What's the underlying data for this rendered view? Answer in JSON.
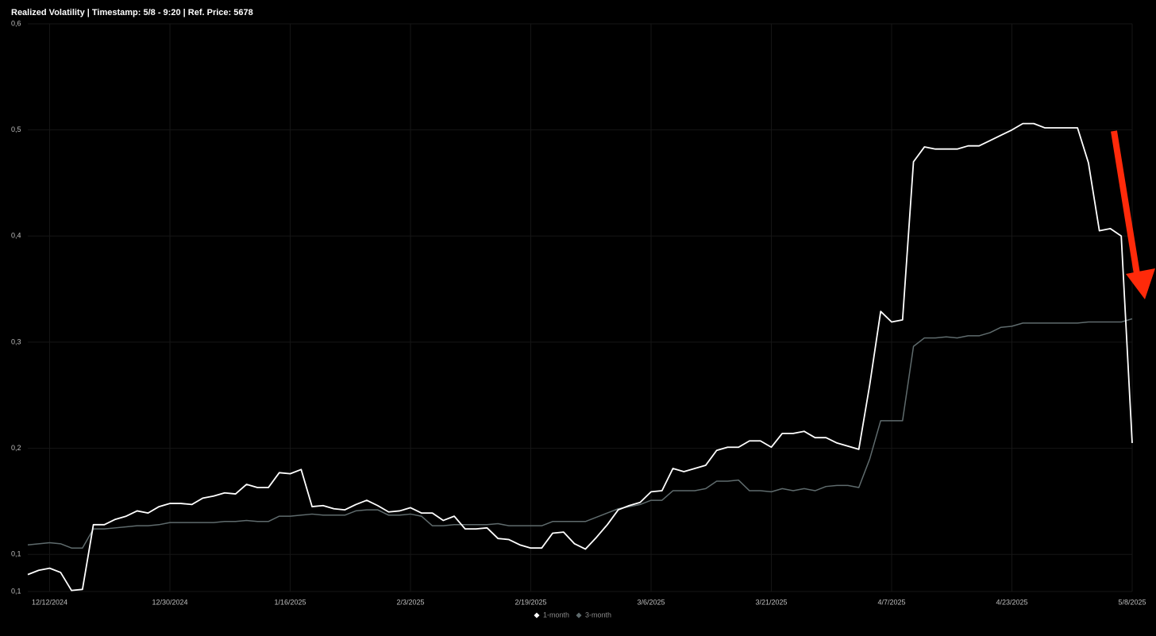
{
  "chart_data": {
    "type": "line",
    "title": "Realized Volatility | Timestamp: 5/8 - 9:20  | Ref. Price: 5678",
    "categories": [
      null,
      null,
      "12/12/2024",
      null,
      null,
      null,
      null,
      null,
      null,
      null,
      null,
      null,
      null,
      "12/30/2024",
      null,
      null,
      null,
      null,
      null,
      null,
      null,
      null,
      null,
      null,
      "1/16/2025",
      null,
      null,
      null,
      null,
      null,
      null,
      null,
      null,
      null,
      null,
      "2/3/2025",
      null,
      null,
      null,
      null,
      null,
      null,
      null,
      null,
      null,
      null,
      "2/19/2025",
      null,
      null,
      null,
      null,
      null,
      null,
      null,
      null,
      null,
      null,
      "3/6/2025",
      null,
      null,
      null,
      null,
      null,
      null,
      null,
      null,
      null,
      null,
      "3/21/2025",
      null,
      null,
      null,
      null,
      null,
      null,
      null,
      null,
      null,
      null,
      "4/7/2025",
      null,
      null,
      null,
      null,
      null,
      null,
      null,
      null,
      null,
      null,
      "4/23/2025",
      null,
      null,
      null,
      null,
      null,
      null,
      null,
      null,
      null,
      null,
      "5/8/2025"
    ],
    "series": [
      {
        "name": "1-month",
        "color": "#ffffff",
        "values": [
          0.081,
          0.085,
          0.087,
          0.083,
          0.066,
          0.067,
          0.128,
          0.128,
          0.133,
          0.136,
          0.141,
          0.139,
          0.145,
          0.148,
          0.148,
          0.147,
          0.153,
          0.155,
          0.158,
          0.157,
          0.166,
          0.163,
          0.163,
          0.177,
          0.176,
          0.18,
          0.145,
          0.146,
          0.143,
          0.142,
          0.147,
          0.151,
          0.146,
          0.14,
          0.141,
          0.144,
          0.139,
          0.139,
          0.132,
          0.136,
          0.124,
          0.124,
          0.125,
          0.115,
          0.114,
          0.109,
          0.106,
          0.106,
          0.12,
          0.121,
          0.11,
          0.105,
          0.116,
          0.128,
          0.142,
          0.146,
          0.149,
          0.159,
          0.16,
          0.181,
          0.178,
          0.181,
          0.184,
          0.198,
          0.201,
          0.201,
          0.207,
          0.207,
          0.201,
          0.214,
          0.214,
          0.216,
          0.21,
          0.21,
          0.205,
          0.202,
          0.199,
          0.26,
          0.329,
          0.319,
          0.321,
          0.47,
          0.484,
          0.482,
          0.482,
          0.482,
          0.485,
          0.485,
          0.49,
          0.495,
          0.5,
          0.506,
          0.506,
          0.502,
          0.502,
          0.502,
          0.502,
          0.469,
          0.405,
          0.407,
          0.4,
          0.205
        ]
      },
      {
        "name": "3-month",
        "color": "#5f6b6d",
        "values": [
          0.109,
          0.11,
          0.111,
          0.11,
          0.106,
          0.106,
          0.124,
          0.124,
          0.125,
          0.126,
          0.127,
          0.127,
          0.128,
          0.13,
          0.13,
          0.13,
          0.13,
          0.13,
          0.131,
          0.131,
          0.132,
          0.131,
          0.131,
          0.136,
          0.136,
          0.137,
          0.138,
          0.137,
          0.137,
          0.137,
          0.141,
          0.142,
          0.142,
          0.137,
          0.137,
          0.138,
          0.136,
          0.127,
          0.127,
          0.128,
          0.128,
          0.128,
          0.128,
          0.129,
          0.127,
          0.127,
          0.127,
          0.127,
          0.131,
          0.131,
          0.131,
          0.131,
          0.135,
          0.139,
          0.143,
          0.145,
          0.147,
          0.151,
          0.151,
          0.16,
          0.16,
          0.16,
          0.162,
          0.169,
          0.169,
          0.17,
          0.16,
          0.16,
          0.159,
          0.162,
          0.16,
          0.162,
          0.16,
          0.164,
          0.165,
          0.165,
          0.163,
          0.19,
          0.226,
          0.226,
          0.226,
          0.296,
          0.304,
          0.304,
          0.305,
          0.304,
          0.306,
          0.306,
          0.309,
          0.314,
          0.315,
          0.318,
          0.318,
          0.318,
          0.318,
          0.318,
          0.318,
          0.319,
          0.319,
          0.319,
          0.319,
          0.322
        ]
      }
    ],
    "ylim": [
      0.065,
      0.6
    ],
    "yticks": [
      {
        "value": 0.065,
        "label": "0,1"
      },
      {
        "value": 0.1,
        "label": "0,1"
      },
      {
        "value": 0.2,
        "label": "0,2"
      },
      {
        "value": 0.3,
        "label": "0,3"
      },
      {
        "value": 0.4,
        "label": "0,4"
      },
      {
        "value": 0.5,
        "label": "0,5"
      },
      {
        "value": 0.6,
        "label": "0,6"
      }
    ],
    "grid": true
  }
}
